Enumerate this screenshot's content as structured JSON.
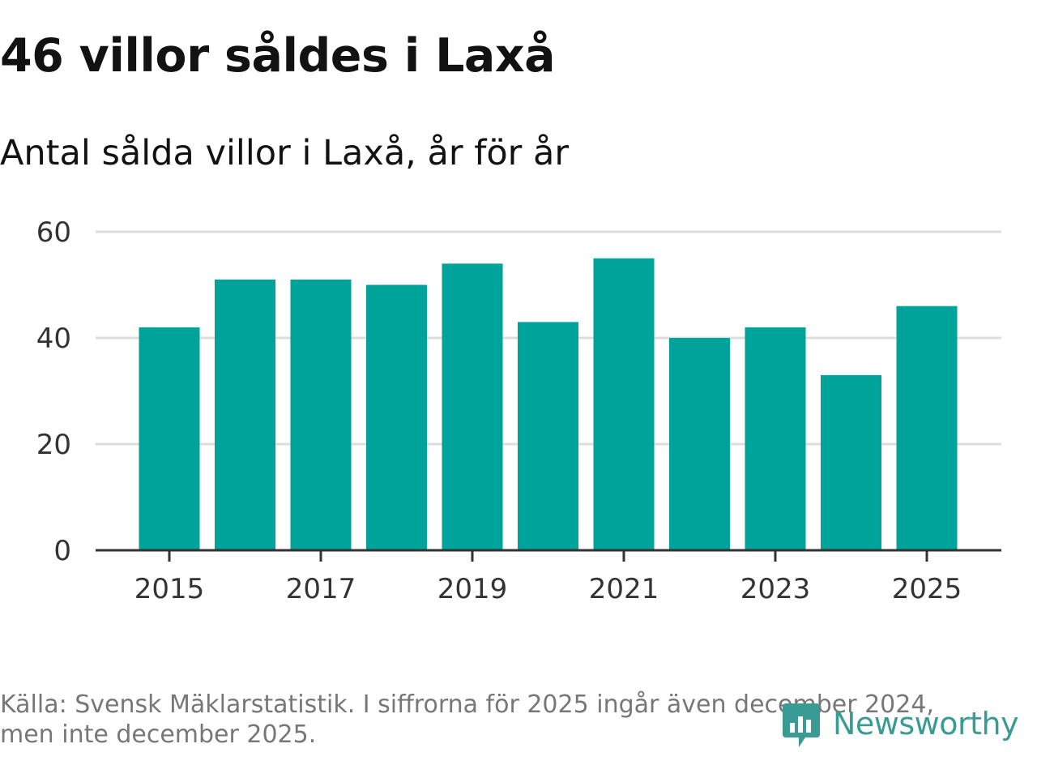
{
  "title": "46 villor såldes i Laxå",
  "subtitle": "Antal sålda villor i Laxå, år för år",
  "footer": {
    "source_line1": "Källa: Svensk Mäklarstatistik. I siffrorna för 2025 ingår även december 2024,",
    "source_line2": "men inte december 2025.",
    "logo_text": "Newsworthy"
  },
  "colors": {
    "bar": "#00a39a",
    "grid": "#dddddd",
    "axis": "#333333",
    "logo": "#3a9b95"
  },
  "chart_data": {
    "type": "bar",
    "title": "46 villor såldes i Laxå",
    "subtitle": "Antal sålda villor i Laxå, år för år",
    "xlabel": "",
    "ylabel": "",
    "categories": [
      2015,
      2016,
      2017,
      2018,
      2019,
      2020,
      2021,
      2022,
      2023,
      2024,
      2025
    ],
    "values": [
      42,
      51,
      51,
      50,
      54,
      43,
      55,
      40,
      42,
      33,
      46
    ],
    "ylim": [
      0,
      60
    ],
    "yticks": [
      0,
      20,
      40,
      60
    ],
    "xticks": [
      2015,
      2017,
      2019,
      2021,
      2023,
      2025
    ],
    "grid": true,
    "legend": "none"
  }
}
